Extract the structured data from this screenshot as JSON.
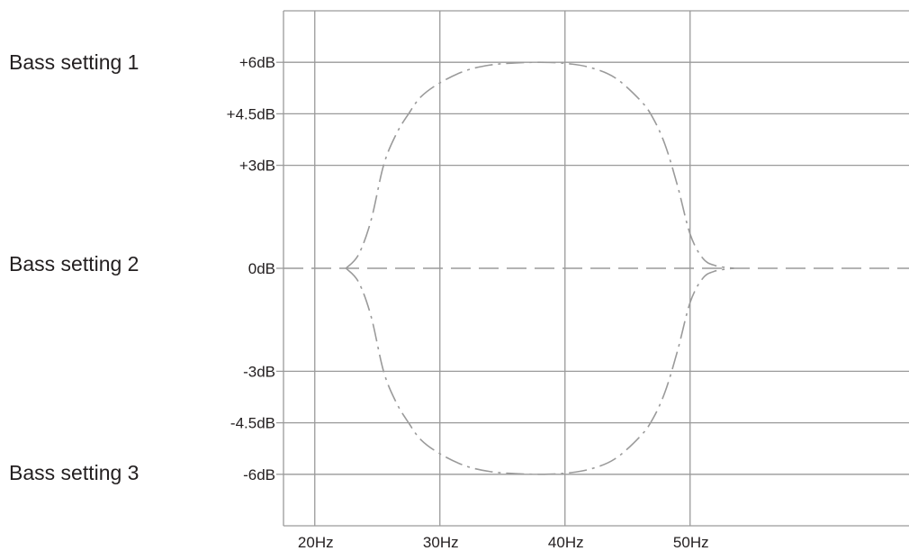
{
  "side_labels": [
    "Bass setting 1",
    "Bass setting 2",
    "Bass setting 3"
  ],
  "colors": {
    "grid": "#9a9a9a",
    "curve": "#9a9a9a",
    "text": "#231f20"
  },
  "chart_data": {
    "type": "line",
    "title": "",
    "xlabel": "",
    "ylabel": "",
    "x_ticks": [
      "20Hz",
      "30Hz",
      "40Hz",
      "50Hz"
    ],
    "x_tick_values": [
      20,
      30,
      40,
      50
    ],
    "y_ticks": [
      "+6dB",
      "+4.5dB",
      "+3dB",
      "0dB",
      "-3dB",
      "-4.5dB",
      "-6dB"
    ],
    "y_tick_values": [
      6,
      4.5,
      3,
      0,
      -3,
      -4.5,
      -6
    ],
    "xlim": [
      17.5,
      67.5
    ],
    "ylim": [
      -7.5,
      7.5
    ],
    "grid": true,
    "series": [
      {
        "style": "dash-dot",
        "x": [
          22.5,
          23.5,
          24.5,
          25.5,
          26.5,
          27.5,
          28.5,
          30,
          32,
          34,
          36,
          38,
          40,
          42,
          44,
          46,
          47,
          48,
          49,
          50,
          51,
          52,
          53.5
        ],
        "y": [
          0,
          0.4,
          1.4,
          3,
          3.9,
          4.5,
          5,
          5.4,
          5.75,
          5.92,
          5.98,
          6,
          5.97,
          5.85,
          5.55,
          4.9,
          4.4,
          3.6,
          2.4,
          1,
          0.3,
          0.08,
          0
        ]
      },
      {
        "style": "dashed",
        "x": [
          17.5,
          67.5
        ],
        "y": [
          0,
          0
        ]
      },
      {
        "style": "dash-dot",
        "x": [
          22.5,
          23.5,
          24.5,
          25.5,
          26.5,
          27.5,
          28.5,
          30,
          32,
          34,
          36,
          38,
          40,
          42,
          44,
          46,
          47,
          48,
          49,
          50,
          51,
          52,
          53.5
        ],
        "y": [
          0,
          -0.4,
          -1.4,
          -3,
          -3.9,
          -4.5,
          -5,
          -5.4,
          -5.75,
          -5.92,
          -5.98,
          -6,
          -5.97,
          -5.85,
          -5.55,
          -4.9,
          -4.4,
          -3.6,
          -2.4,
          -1,
          -0.3,
          -0.08,
          0
        ]
      }
    ]
  }
}
